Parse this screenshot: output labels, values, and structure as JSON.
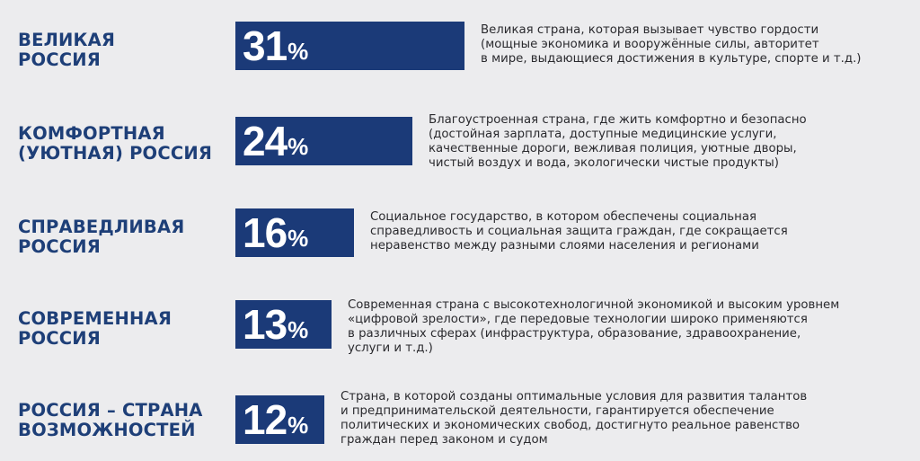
{
  "chart_data": {
    "type": "bar",
    "categories": [
      "ВЕЛИКАЯ\nРОССИЯ",
      "КОМФОРТНАЯ\n(УЮТНАЯ) РОССИЯ",
      "СПРАВЕДЛИВАЯ\nРОССИЯ",
      "СОВРЕМЕННАЯ\nРОССИЯ",
      "РОССИЯ – СТРАНА\nВОЗМОЖНОСТЕЙ"
    ],
    "values": [
      31,
      24,
      16,
      13,
      12
    ],
    "unit": "%",
    "descriptions": [
      "Великая страна, которая вызывает чувство гордости\n(мощные экономика и вооружённые силы, авторитет\nв мире, выдающиеся достижения в культуре, спорте и т.д.)",
      "Благоустроенная страна, где жить комфортно и безопасно\n(достойная зарплата, доступные медицинские услуги,\nкачественные дороги, вежливая полиция, уютные дворы,\nчистый воздух и вода, экологически чистые продукты)",
      "Социальное государство, в котором обеспечены социальная\nсправедливость и социальная защита граждан, где сокращается\nнеравенство между разными слоями населения и регионами",
      "Современная страна с высокотехнологичной экономикой и высоким уровнем\n«цифровой зрелости», где передовые технологии широко применяются\nв различных сферах (инфраструктура, образование, здравоохранение,\nуслуги и т.д.)",
      "Страна, в которой созданы оптимальные условия для развития талантов\nи предпринимательской деятельности, гарантируется обеспечение\nполитических и экономических свобод, достигнуто реальное равенство\nграждан перед законом и судом"
    ],
    "orientation": "horizontal",
    "colors": {
      "bar": "#1b3a78",
      "label": "#1e3f78",
      "value_text": "#ffffff",
      "description": "#2a2a2e",
      "background": "#ececee"
    }
  }
}
